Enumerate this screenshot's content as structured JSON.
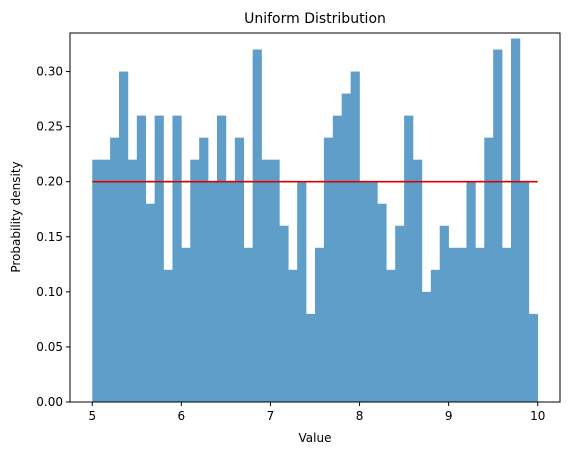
{
  "chart_data": {
    "type": "bar",
    "title": "Uniform Distribution",
    "xlabel": "Value",
    "ylabel": "Probability density",
    "xlim": [
      4.75,
      10.25
    ],
    "ylim": [
      0,
      0.335
    ],
    "xticks": [
      5,
      6,
      7,
      8,
      9,
      10
    ],
    "yticks": [
      0.0,
      0.05,
      0.1,
      0.15,
      0.2,
      0.25,
      0.3
    ],
    "bin_start": 5,
    "bin_end": 10,
    "bar_color": "#5f9ec9",
    "line_color": "#e00000",
    "grid": false,
    "values": [
      0.22,
      0.22,
      0.24,
      0.3,
      0.22,
      0.26,
      0.18,
      0.26,
      0.12,
      0.26,
      0.14,
      0.22,
      0.24,
      0.2,
      0.26,
      0.2,
      0.24,
      0.14,
      0.32,
      0.22,
      0.22,
      0.16,
      0.12,
      0.2,
      0.08,
      0.14,
      0.24,
      0.26,
      0.28,
      0.3,
      0.2,
      0.2,
      0.18,
      0.12,
      0.16,
      0.26,
      0.22,
      0.1,
      0.12,
      0.16,
      0.14,
      0.14,
      0.2,
      0.14,
      0.24,
      0.32,
      0.14,
      0.33,
      0.2,
      0.08
    ],
    "pdf_line": {
      "x": [
        5,
        10
      ],
      "y": [
        0.2,
        0.2
      ]
    }
  }
}
